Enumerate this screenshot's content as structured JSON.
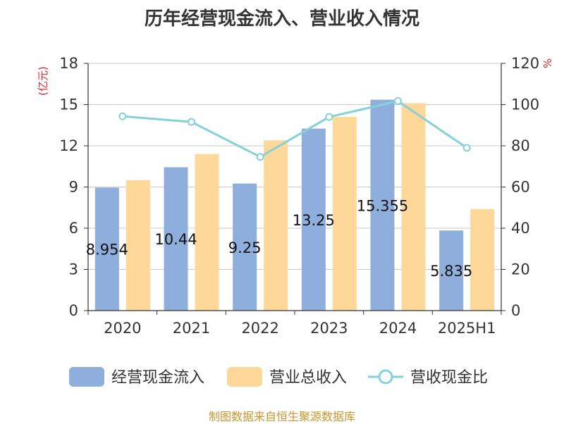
{
  "title": "历年经营现金流入、营业收入情况",
  "source": "制图数据来自恒生聚源数据库",
  "colors": {
    "cash_inflow": "#8eaedb",
    "revenue": "#fdd898",
    "ratio_line": "#86d1d8",
    "unit": "#e0262e",
    "source": "#c8962e"
  },
  "chart_data": {
    "type": "bar",
    "title": "历年经营现金流入、营业收入情况",
    "categories": [
      "2020",
      "2021",
      "2022",
      "2023",
      "2024",
      "2025H1"
    ],
    "y_left": {
      "unit": "(亿元)",
      "min": 0,
      "max": 18,
      "ticks": [
        0,
        3,
        6,
        9,
        12,
        15,
        18
      ]
    },
    "y_right": {
      "unit": "%",
      "min": 0,
      "max": 120,
      "ticks": [
        0,
        20,
        40,
        60,
        80,
        100,
        120
      ]
    },
    "grid": true,
    "legend_position": "bottom",
    "series": [
      {
        "name": "经营现金流入",
        "type": "bar",
        "axis": "left",
        "values": [
          8.954,
          10.44,
          9.25,
          13.25,
          15.355,
          5.835
        ],
        "labels": [
          "8.954",
          "10.44",
          "9.25",
          "13.25",
          "15.355",
          "5.835"
        ]
      },
      {
        "name": "营业总收入",
        "type": "bar",
        "axis": "left",
        "values": [
          9.5,
          11.4,
          12.4,
          14.1,
          15.1,
          7.4
        ]
      },
      {
        "name": "营收现金比",
        "type": "line",
        "axis": "right",
        "values": [
          94.3,
          91.6,
          74.6,
          94.0,
          101.7,
          79.0
        ]
      }
    ]
  }
}
